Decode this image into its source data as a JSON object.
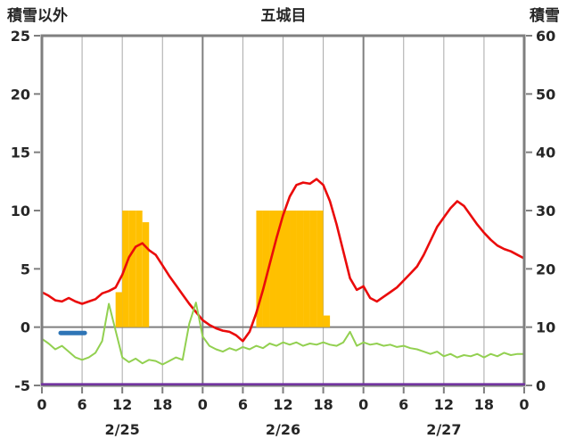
{
  "header": {
    "left_axis_title": "積雪以外",
    "title": "五城目",
    "right_axis_title": "積雪"
  },
  "colors": {
    "temperature_red": "#EA0B0B",
    "secondary_green": "#92D050",
    "precipitation_amber": "#FFC000",
    "blue_segment": "#2E75B6",
    "snow_depth_purple": "#7030A0",
    "grid_gray": "#7f7f7f",
    "text": "#262626",
    "background": "#ffffff"
  },
  "chart_data": {
    "type": "line",
    "title": "五城目",
    "x_unit": "hour",
    "x_range": [
      0,
      72
    ],
    "x_tick_step": 6,
    "x_tick_labels": [
      "0",
      "6",
      "12",
      "18",
      "0",
      "6",
      "12",
      "18",
      "0",
      "6",
      "12",
      "18",
      "0"
    ],
    "day_labels": [
      "2/25",
      "2/26",
      "2/27"
    ],
    "left_axis": {
      "title": "積雪以外",
      "min": -5,
      "max": 25,
      "ticks": [
        "25",
        "20",
        "15",
        "10",
        "5",
        "0",
        "-5"
      ]
    },
    "right_axis": {
      "title": "積雪",
      "min": 0,
      "max": 60,
      "ticks": [
        "60",
        "50",
        "40",
        "30",
        "20",
        "10",
        "0"
      ]
    },
    "grid": {
      "vertical_every_hours": 6,
      "day_boundary_hours": [
        24,
        48
      ],
      "zero_line": true,
      "horizontal_gridlines": false
    },
    "series": [
      {
        "name": "precipitation",
        "type": "bar",
        "axis": "left",
        "color": "#FFC000",
        "bars": [
          {
            "hour": 11,
            "value": 3
          },
          {
            "hour": 12,
            "value": 10
          },
          {
            "hour": 13,
            "value": 10
          },
          {
            "hour": 14,
            "value": 10
          },
          {
            "hour": 15,
            "value": 9
          },
          {
            "hour": 32,
            "value": 10
          },
          {
            "hour": 33,
            "value": 10
          },
          {
            "hour": 34,
            "value": 10
          },
          {
            "hour": 35,
            "value": 10
          },
          {
            "hour": 36,
            "value": 10
          },
          {
            "hour": 37,
            "value": 10
          },
          {
            "hour": 38,
            "value": 10
          },
          {
            "hour": 39,
            "value": 10
          },
          {
            "hour": 40,
            "value": 10
          },
          {
            "hour": 41,
            "value": 10
          },
          {
            "hour": 42,
            "value": 1
          }
        ]
      },
      {
        "name": "temperature",
        "type": "line",
        "axis": "left",
        "color": "#EA0B0B",
        "width": 2.6,
        "values": [
          3.0,
          2.7,
          2.3,
          2.2,
          2.5,
          2.2,
          2.0,
          2.2,
          2.4,
          2.9,
          3.1,
          3.4,
          4.5,
          6.0,
          6.9,
          7.2,
          6.6,
          6.2,
          5.3,
          4.4,
          3.6,
          2.8,
          2.0,
          1.3,
          0.6,
          0.2,
          -0.1,
          -0.3,
          -0.4,
          -0.7,
          -1.2,
          -0.4,
          1.2,
          3.2,
          5.4,
          7.6,
          9.6,
          11.2,
          12.2,
          12.4,
          12.3,
          12.7,
          12.2,
          10.8,
          8.8,
          6.5,
          4.2,
          3.2,
          3.5,
          2.5,
          2.2,
          2.6,
          3.0,
          3.4,
          4.0,
          4.6,
          5.2,
          6.2,
          7.4,
          8.6,
          9.4,
          10.2,
          10.8,
          10.4,
          9.6,
          8.8,
          8.1,
          7.5,
          7.0,
          6.7,
          6.5,
          6.2,
          5.9
        ]
      },
      {
        "name": "secondary",
        "type": "line",
        "axis": "left",
        "color": "#92D050",
        "width": 2,
        "values": [
          -1.0,
          -1.4,
          -1.9,
          -1.6,
          -2.1,
          -2.6,
          -2.8,
          -2.6,
          -2.2,
          -1.2,
          2.0,
          -0.3,
          -2.6,
          -3.0,
          -2.7,
          -3.1,
          -2.8,
          -2.9,
          -3.2,
          -2.9,
          -2.6,
          -2.8,
          0.3,
          2.1,
          -0.8,
          -1.6,
          -1.9,
          -2.1,
          -1.8,
          -2.0,
          -1.7,
          -1.9,
          -1.6,
          -1.8,
          -1.4,
          -1.6,
          -1.3,
          -1.5,
          -1.3,
          -1.6,
          -1.4,
          -1.5,
          -1.3,
          -1.5,
          -1.6,
          -1.3,
          -0.4,
          -1.6,
          -1.3,
          -1.5,
          -1.4,
          -1.6,
          -1.5,
          -1.7,
          -1.6,
          -1.8,
          -1.9,
          -2.1,
          -2.3,
          -2.1,
          -2.5,
          -2.3,
          -2.6,
          -2.4,
          -2.5,
          -2.3,
          -2.6,
          -2.3,
          -2.5,
          -2.2,
          -2.4,
          -2.3,
          -2.3
        ]
      },
      {
        "name": "blue-segment",
        "type": "line",
        "axis": "left",
        "color": "#2E75B6",
        "width": 5,
        "x": [
          2.8,
          6.4
        ],
        "values": [
          -0.5,
          -0.5
        ]
      },
      {
        "name": "snow-depth",
        "type": "line",
        "axis": "right",
        "color": "#7030A0",
        "width": 2.5,
        "on_top": true,
        "x": [
          0,
          72
        ],
        "values": [
          0,
          0
        ]
      }
    ]
  }
}
